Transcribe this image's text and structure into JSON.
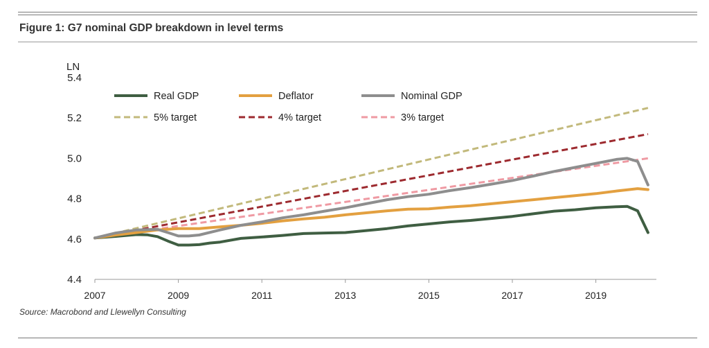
{
  "figure_title": "Figure 1: G7 nominal GDP breakdown in level terms",
  "source": "Source: Macrobond and Llewellyn Consulting",
  "colors": {
    "real_gdp": "#3f5e42",
    "deflator": "#e3a040",
    "nominal_gdp": "#8e8e8e",
    "target5": "#c2b97b",
    "target4": "#9d2a2f",
    "target3": "#ef9aa3"
  },
  "chart_data": {
    "type": "line",
    "title": "Figure 1: G7 nominal GDP breakdown in level terms",
    "ylabel": "LN",
    "xlabel": "",
    "ylim": [
      4.4,
      5.4
    ],
    "xlim": [
      2007,
      2020.5
    ],
    "yticks": [
      "4.4",
      "4.6",
      "4.8",
      "5.0",
      "5.2",
      "5.4"
    ],
    "xticks": [
      "2007",
      "2009",
      "2011",
      "2013",
      "2015",
      "2017",
      "2019"
    ],
    "legend_position": "top-left",
    "series": [
      {
        "name": "Real GDP",
        "style": "solid",
        "color_key": "real_gdp",
        "x": [
          2007,
          2007.5,
          2008,
          2008.25,
          2008.5,
          2008.75,
          2009,
          2009.25,
          2009.5,
          2009.75,
          2010,
          2010.5,
          2011,
          2011.5,
          2012,
          2012.5,
          2013,
          2013.5,
          2014,
          2014.5,
          2015,
          2015.5,
          2016,
          2016.5,
          2017,
          2017.5,
          2018,
          2018.5,
          2019,
          2019.5,
          2019.75,
          2020,
          2020.25
        ],
        "values": [
          4.605,
          4.613,
          4.622,
          4.621,
          4.612,
          4.59,
          4.57,
          4.57,
          4.572,
          4.58,
          4.585,
          4.603,
          4.61,
          4.618,
          4.627,
          4.63,
          4.632,
          4.642,
          4.652,
          4.665,
          4.675,
          4.685,
          4.692,
          4.702,
          4.712,
          4.725,
          4.738,
          4.745,
          4.755,
          4.76,
          4.762,
          4.74,
          4.632
        ]
      },
      {
        "name": "Deflator",
        "style": "solid",
        "color_key": "deflator",
        "x": [
          2007,
          2007.5,
          2008,
          2008.5,
          2009,
          2009.5,
          2010,
          2010.5,
          2011,
          2011.5,
          2012,
          2012.5,
          2013,
          2013.5,
          2014,
          2014.5,
          2015,
          2015.5,
          2016,
          2016.5,
          2017,
          2017.5,
          2018,
          2018.5,
          2019,
          2019.5,
          2020,
          2020.25
        ],
        "values": [
          4.605,
          4.62,
          4.632,
          4.645,
          4.652,
          4.652,
          4.66,
          4.668,
          4.678,
          4.69,
          4.7,
          4.708,
          4.72,
          4.73,
          4.74,
          4.748,
          4.75,
          4.758,
          4.765,
          4.775,
          4.785,
          4.795,
          4.805,
          4.815,
          4.825,
          4.838,
          4.85,
          4.845
        ]
      },
      {
        "name": "Nominal GDP",
        "style": "solid",
        "color_key": "nominal_gdp",
        "x": [
          2007,
          2007.5,
          2008,
          2008.5,
          2008.75,
          2009,
          2009.25,
          2009.5,
          2010,
          2010.5,
          2011,
          2011.5,
          2012,
          2012.5,
          2013,
          2013.5,
          2014,
          2014.5,
          2015,
          2015.5,
          2016,
          2016.5,
          2017,
          2017.5,
          2018,
          2018.5,
          2019,
          2019.5,
          2019.75,
          2020,
          2020.25
        ],
        "values": [
          4.605,
          4.63,
          4.645,
          4.648,
          4.632,
          4.615,
          4.615,
          4.62,
          4.645,
          4.668,
          4.685,
          4.705,
          4.72,
          4.738,
          4.755,
          4.775,
          4.795,
          4.81,
          4.822,
          4.84,
          4.855,
          4.872,
          4.89,
          4.912,
          4.935,
          4.955,
          4.975,
          4.995,
          5.0,
          4.985,
          4.868
        ]
      },
      {
        "name": "5% target",
        "style": "dashed",
        "color_key": "target5",
        "x": [
          2007,
          2020.25
        ],
        "values": [
          4.605,
          5.25
        ]
      },
      {
        "name": "4% target",
        "style": "dashed",
        "color_key": "target4",
        "x": [
          2007,
          2020.25
        ],
        "values": [
          4.605,
          5.12
        ]
      },
      {
        "name": "3% target",
        "style": "dashed",
        "color_key": "target3",
        "x": [
          2007,
          2020.25
        ],
        "values": [
          4.605,
          5.0
        ]
      }
    ]
  }
}
